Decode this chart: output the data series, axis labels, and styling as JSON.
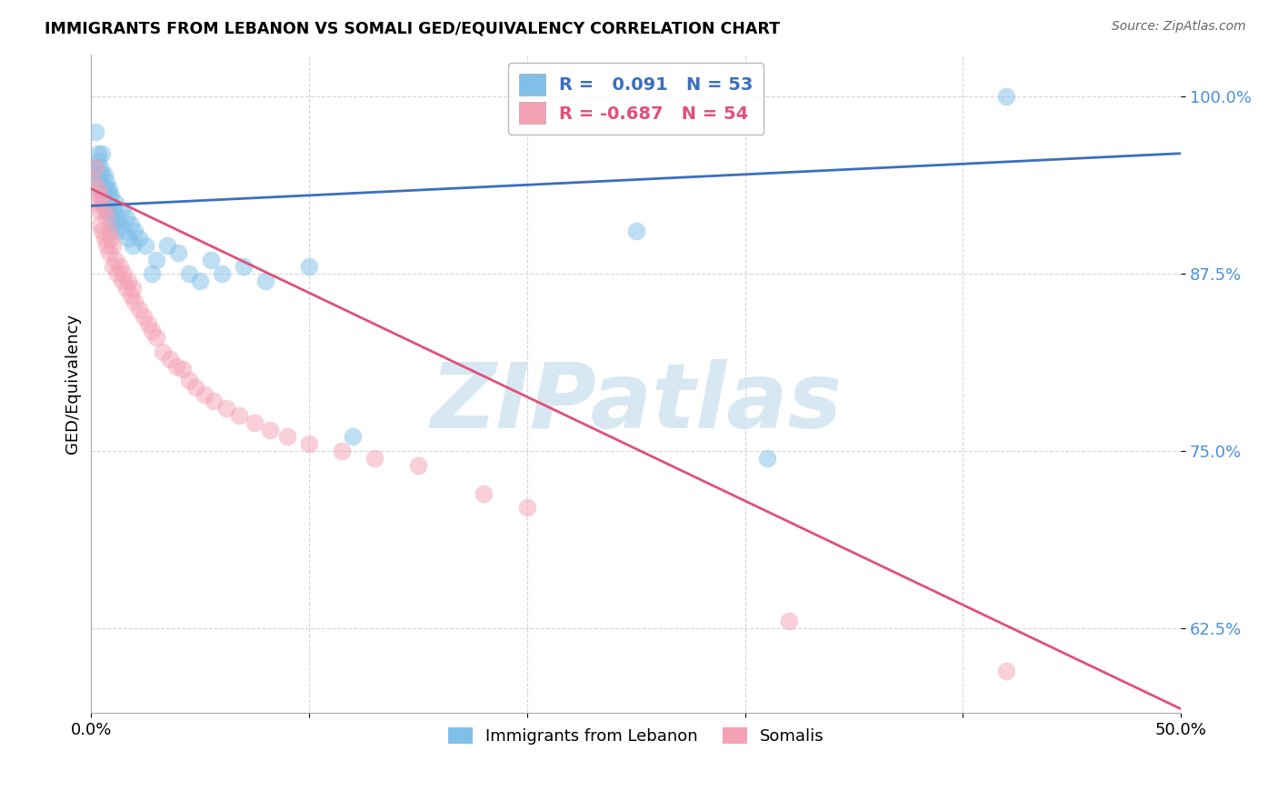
{
  "title": "IMMIGRANTS FROM LEBANON VS SOMALI GED/EQUIVALENCY CORRELATION CHART",
  "source": "Source: ZipAtlas.com",
  "ylabel": "GED/Equivalency",
  "yticks": [
    "62.5%",
    "75.0%",
    "87.5%",
    "100.0%"
  ],
  "ytick_vals": [
    0.625,
    0.75,
    0.875,
    1.0
  ],
  "xmin": 0.0,
  "xmax": 0.5,
  "ymin": 0.565,
  "ymax": 1.03,
  "legend_blue_label": "Immigrants from Lebanon",
  "legend_pink_label": "Somalis",
  "R_blue": 0.091,
  "N_blue": 53,
  "R_pink": -0.687,
  "N_pink": 54,
  "blue_color": "#7fbfe8",
  "pink_color": "#f4a0b5",
  "blue_line_color": "#3a6fbf",
  "pink_line_color": "#e0507a",
  "watermark_color": "#d0e4f0",
  "blue_scatter_x": [
    0.001,
    0.002,
    0.002,
    0.003,
    0.003,
    0.003,
    0.004,
    0.004,
    0.004,
    0.005,
    0.005,
    0.005,
    0.006,
    0.006,
    0.006,
    0.007,
    0.007,
    0.007,
    0.008,
    0.008,
    0.008,
    0.009,
    0.009,
    0.01,
    0.01,
    0.011,
    0.011,
    0.012,
    0.013,
    0.014,
    0.015,
    0.016,
    0.017,
    0.018,
    0.019,
    0.02,
    0.022,
    0.025,
    0.028,
    0.03,
    0.035,
    0.04,
    0.045,
    0.05,
    0.055,
    0.06,
    0.07,
    0.08,
    0.1,
    0.12,
    0.25,
    0.31,
    0.42
  ],
  "blue_scatter_y": [
    0.945,
    0.975,
    0.95,
    0.96,
    0.94,
    0.955,
    0.945,
    0.935,
    0.95,
    0.93,
    0.945,
    0.96,
    0.935,
    0.945,
    0.925,
    0.94,
    0.92,
    0.935,
    0.93,
    0.92,
    0.935,
    0.915,
    0.93,
    0.92,
    0.91,
    0.925,
    0.905,
    0.915,
    0.91,
    0.92,
    0.905,
    0.915,
    0.9,
    0.91,
    0.895,
    0.905,
    0.9,
    0.895,
    0.875,
    0.885,
    0.895,
    0.89,
    0.875,
    0.87,
    0.885,
    0.875,
    0.88,
    0.87,
    0.88,
    0.76,
    0.905,
    0.745,
    1.0
  ],
  "pink_scatter_x": [
    0.001,
    0.002,
    0.002,
    0.003,
    0.003,
    0.004,
    0.004,
    0.005,
    0.005,
    0.006,
    0.006,
    0.007,
    0.007,
    0.008,
    0.008,
    0.009,
    0.01,
    0.01,
    0.011,
    0.012,
    0.013,
    0.014,
    0.015,
    0.016,
    0.017,
    0.018,
    0.019,
    0.02,
    0.022,
    0.024,
    0.026,
    0.028,
    0.03,
    0.033,
    0.036,
    0.039,
    0.042,
    0.045,
    0.048,
    0.052,
    0.056,
    0.062,
    0.068,
    0.075,
    0.082,
    0.09,
    0.1,
    0.115,
    0.13,
    0.15,
    0.18,
    0.2,
    0.32,
    0.42
  ],
  "pink_scatter_y": [
    0.94,
    0.95,
    0.925,
    0.935,
    0.92,
    0.93,
    0.91,
    0.925,
    0.905,
    0.92,
    0.9,
    0.915,
    0.895,
    0.905,
    0.89,
    0.9,
    0.895,
    0.88,
    0.885,
    0.875,
    0.88,
    0.87,
    0.875,
    0.865,
    0.87,
    0.86,
    0.865,
    0.855,
    0.85,
    0.845,
    0.84,
    0.835,
    0.83,
    0.82,
    0.815,
    0.81,
    0.808,
    0.8,
    0.795,
    0.79,
    0.785,
    0.78,
    0.775,
    0.77,
    0.765,
    0.76,
    0.755,
    0.75,
    0.745,
    0.74,
    0.72,
    0.71,
    0.63,
    0.595
  ],
  "blue_line_x": [
    0.0,
    0.5
  ],
  "blue_line_y": [
    0.923,
    0.96
  ],
  "pink_line_x": [
    0.0,
    0.5
  ],
  "pink_line_y": [
    0.935,
    0.568
  ]
}
